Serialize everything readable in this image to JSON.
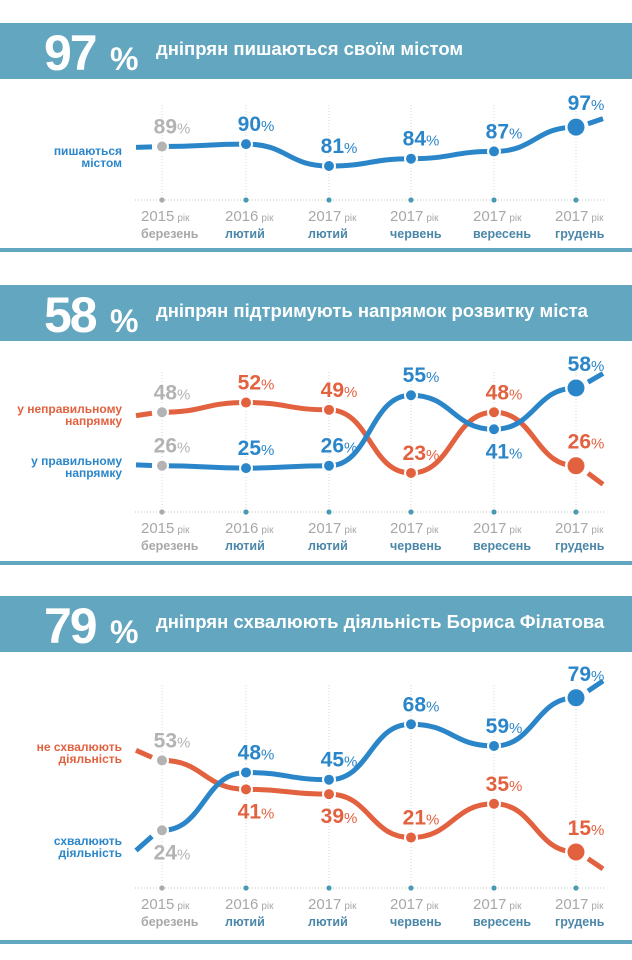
{
  "panels": [
    {
      "headline_value": "97",
      "headline_unit": "%",
      "title": "дніпрян пишаються своїм містом"
    },
    {
      "headline_value": "58",
      "headline_unit": "%",
      "title": "дніпрян підтримують напрямок розвитку міста"
    },
    {
      "headline_value": "79",
      "headline_unit": "%",
      "title": "дніпрян схвалюють діяльність Бориса Філатова"
    }
  ],
  "colors": {
    "banner": "#62a6bf",
    "blue": "#2b86c9",
    "red": "#e2613f",
    "gray": "#b3b3b3",
    "month": "#4a87a8"
  },
  "chart_data": [
    {
      "type": "line",
      "unit": "%",
      "categories": [
        {
          "year": "2015",
          "unit": "рік",
          "month": "березень"
        },
        {
          "year": "2016",
          "unit": "рік",
          "month": "лютий"
        },
        {
          "year": "2017",
          "unit": "рік",
          "month": "лютий"
        },
        {
          "year": "2017",
          "unit": "рік",
          "month": "червень"
        },
        {
          "year": "2017",
          "unit": "рік",
          "month": "вересень"
        },
        {
          "year": "2017",
          "unit": "рік",
          "month": "грудень"
        }
      ],
      "series": [
        {
          "name": "пишаються містом",
          "color": "#2b86c9",
          "values": [
            89,
            90,
            81,
            84,
            87,
            97
          ]
        }
      ]
    },
    {
      "type": "line",
      "unit": "%",
      "categories": [
        {
          "year": "2015",
          "unit": "рік",
          "month": "березень"
        },
        {
          "year": "2016",
          "unit": "рік",
          "month": "лютий"
        },
        {
          "year": "2017",
          "unit": "рік",
          "month": "лютий"
        },
        {
          "year": "2017",
          "unit": "рік",
          "month": "червень"
        },
        {
          "year": "2017",
          "unit": "рік",
          "month": "вересень"
        },
        {
          "year": "2017",
          "unit": "рік",
          "month": "грудень"
        }
      ],
      "series": [
        {
          "name": "у неправильному напрямку",
          "color": "#e2613f",
          "values": [
            48,
            52,
            49,
            23,
            48,
            26
          ]
        },
        {
          "name": "у правильному напрямку",
          "color": "#2b86c9",
          "values": [
            26,
            25,
            26,
            55,
            41,
            58
          ]
        }
      ]
    },
    {
      "type": "line",
      "unit": "%",
      "categories": [
        {
          "year": "2015",
          "unit": "рік",
          "month": "березень"
        },
        {
          "year": "2016",
          "unit": "рік",
          "month": "лютий"
        },
        {
          "year": "2017",
          "unit": "рік",
          "month": "лютий"
        },
        {
          "year": "2017",
          "unit": "рік",
          "month": "червень"
        },
        {
          "year": "2017",
          "unit": "рік",
          "month": "вересень"
        },
        {
          "year": "2017",
          "unit": "рік",
          "month": "грудень"
        }
      ],
      "series": [
        {
          "name": "не схвалюють діяльність",
          "color": "#e2613f",
          "values": [
            53,
            41,
            39,
            21,
            35,
            15
          ]
        },
        {
          "name": "схвалюють діяльність",
          "color": "#2b86c9",
          "values": [
            24,
            48,
            45,
            68,
            59,
            79
          ]
        }
      ]
    }
  ]
}
